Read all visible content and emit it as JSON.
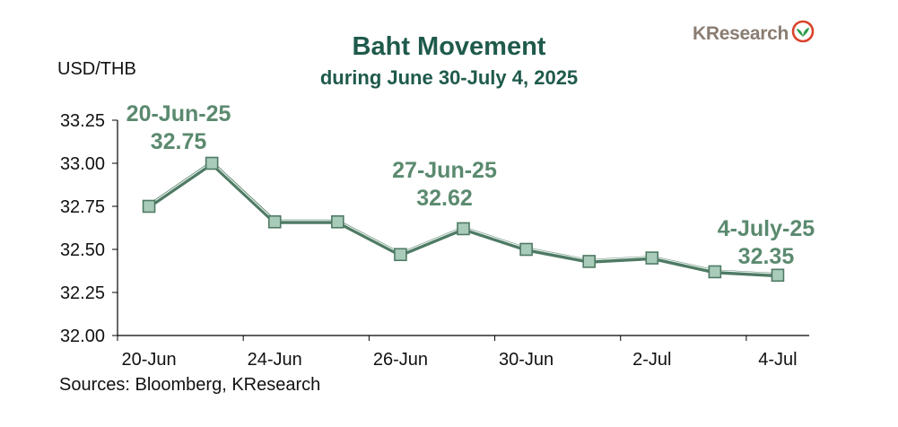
{
  "brand": {
    "name": "KResearch",
    "logo_icon": "kbank-leaf-logo"
  },
  "unit_label": "USD/THB",
  "source": "Sources: Bloomberg, KResearch",
  "colors": {
    "title": "#1f5a4c",
    "line": "#4e7a64",
    "marker_fill": "#a9cbb9",
    "annotation": "#5b8a6f"
  },
  "chart_data": {
    "type": "line",
    "title": "Baht Movement",
    "subtitle": "during June 30-July 4, 2025",
    "ylabel": "USD/THB",
    "xlabel": "",
    "ylim": [
      32.0,
      33.25
    ],
    "yticks": [
      "32.00",
      "32.25",
      "32.50",
      "32.75",
      "33.00",
      "33.25"
    ],
    "x_tick_labels": [
      "20-Jun",
      "24-Jun",
      "26-Jun",
      "30-Jun",
      "2-Jul",
      "4-Jul"
    ],
    "x_tick_label_index": [
      0,
      2,
      4,
      6,
      8,
      10
    ],
    "series": [
      {
        "values": [
          32.75,
          33.0,
          32.66,
          32.66,
          32.47,
          32.62,
          32.5,
          32.43,
          32.45,
          32.37,
          32.35
        ]
      }
    ],
    "annotations": [
      {
        "index": 0,
        "date": "20-Jun-25",
        "value": "32.75"
      },
      {
        "index": 5,
        "date": "27-Jun-25",
        "value": "32.62"
      },
      {
        "index": 10,
        "date": "4-July-25",
        "value": "32.35"
      }
    ],
    "grid": false
  }
}
